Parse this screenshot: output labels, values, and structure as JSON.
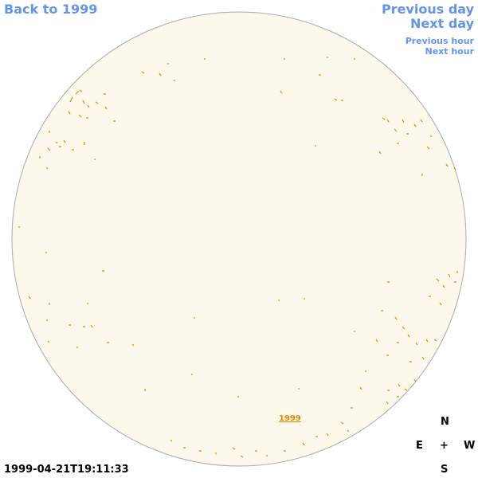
{
  "nav": {
    "back": "Back to 1999",
    "previous_day": "Previous day",
    "next_day": "Next day",
    "previous_hour": "Previous hour",
    "next_hour": "Next hour"
  },
  "disk_link": "1999",
  "timestamp": "1999-04-21T19:11:33",
  "compass": {
    "north": "N",
    "east": "E",
    "center": "+",
    "west": "W",
    "south": "S"
  }
}
